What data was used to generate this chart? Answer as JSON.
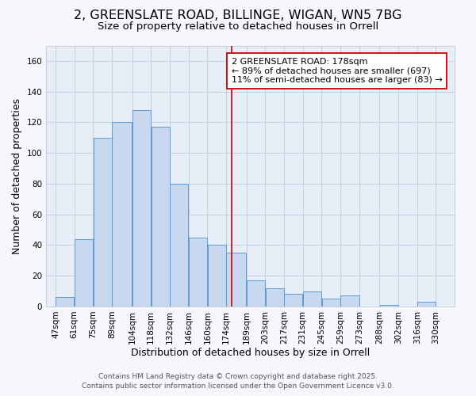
{
  "title": "2, GREENSLATE ROAD, BILLINGE, WIGAN, WN5 7BG",
  "subtitle": "Size of property relative to detached houses in Orrell",
  "xlabel": "Distribution of detached houses by size in Orrell",
  "ylabel": "Number of detached properties",
  "bar_left_edges": [
    47,
    61,
    75,
    89,
    104,
    118,
    132,
    146,
    160,
    174,
    189,
    203,
    217,
    231,
    245,
    259,
    273,
    288,
    302,
    316
  ],
  "bar_widths": [
    14,
    14,
    14,
    15,
    14,
    14,
    14,
    14,
    14,
    15,
    14,
    14,
    14,
    14,
    14,
    14,
    15,
    14,
    14,
    14
  ],
  "bar_heights": [
    6,
    44,
    110,
    120,
    128,
    117,
    80,
    45,
    40,
    35,
    17,
    12,
    8,
    10,
    5,
    7,
    0,
    1,
    0,
    3
  ],
  "bar_color": "#c8d8ee",
  "bar_edgecolor": "#5b9bd5",
  "plot_bg_color": "#e8eef8",
  "fig_bg_color": "#f5f7fc",
  "xlim": [
    40,
    344
  ],
  "ylim": [
    0,
    170
  ],
  "yticks": [
    0,
    20,
    40,
    60,
    80,
    100,
    120,
    140,
    160
  ],
  "xtick_labels": [
    "47sqm",
    "61sqm",
    "75sqm",
    "89sqm",
    "104sqm",
    "118sqm",
    "132sqm",
    "146sqm",
    "160sqm",
    "174sqm",
    "189sqm",
    "203sqm",
    "217sqm",
    "231sqm",
    "245sqm",
    "259sqm",
    "273sqm",
    "288sqm",
    "302sqm",
    "316sqm",
    "330sqm"
  ],
  "xtick_positions": [
    47,
    61,
    75,
    89,
    104,
    118,
    132,
    146,
    160,
    174,
    189,
    203,
    217,
    231,
    245,
    259,
    273,
    288,
    302,
    316,
    330
  ],
  "red_line_x": 178,
  "annotation_title": "2 GREENSLATE ROAD: 178sqm",
  "annotation_line1": "← 89% of detached houses are smaller (697)",
  "annotation_line2": "11% of semi-detached houses are larger (83) →",
  "grid_color": "#c8d0e0",
  "footer1": "Contains HM Land Registry data © Crown copyright and database right 2025.",
  "footer2": "Contains public sector information licensed under the Open Government Licence v3.0.",
  "title_fontsize": 11.5,
  "subtitle_fontsize": 9.5,
  "axis_label_fontsize": 9,
  "tick_fontsize": 7.5,
  "annotation_fontsize": 8,
  "footer_fontsize": 6.5
}
